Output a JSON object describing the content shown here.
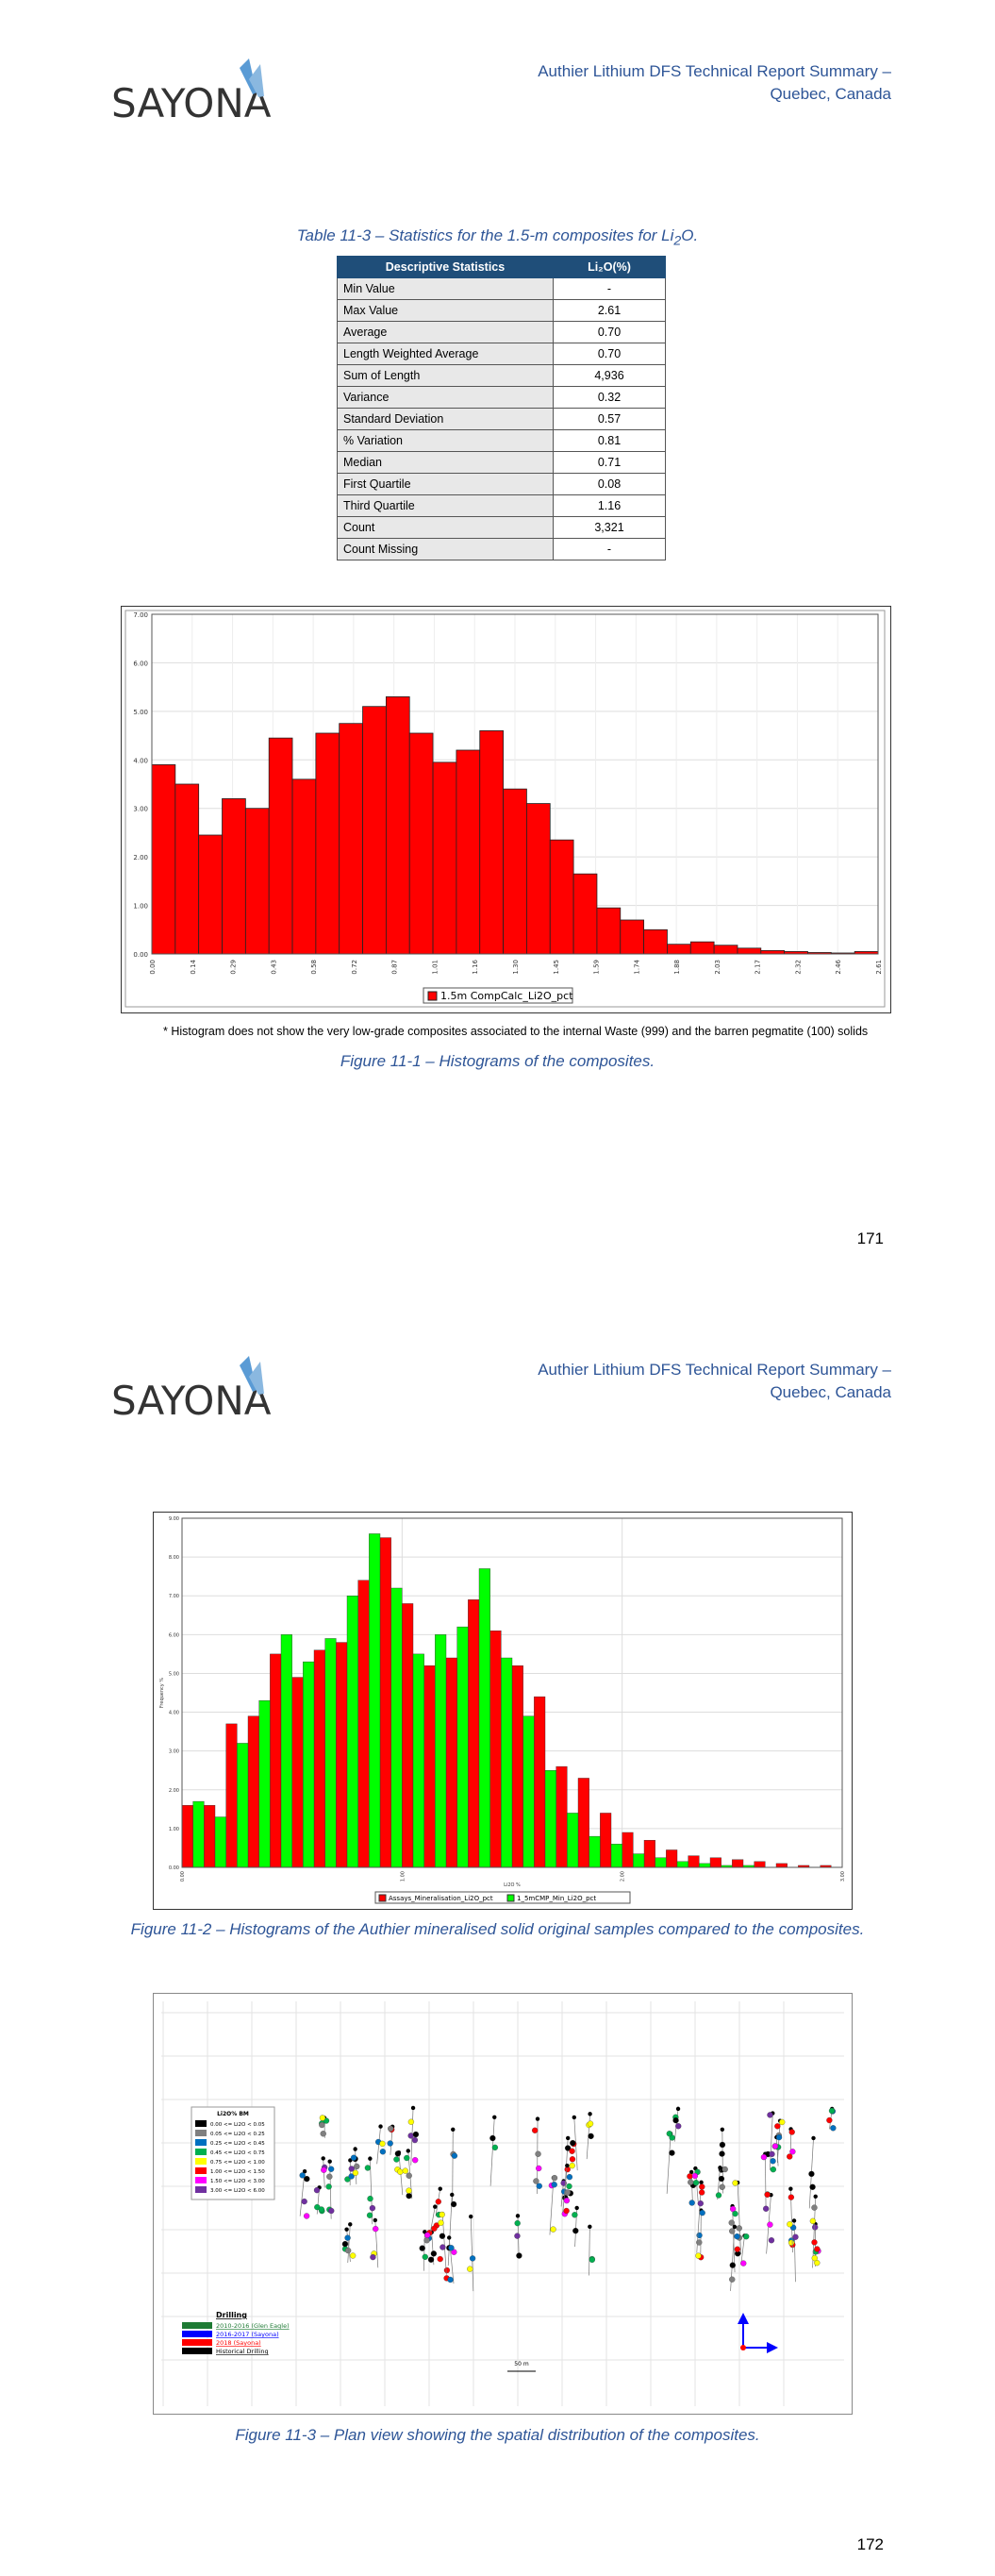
{
  "header": {
    "logo_text": "SAYONA",
    "title_line1": "Authier Lithium DFS Technical Report Summary –",
    "title_line2": "Quebec, Canada"
  },
  "page1": {
    "table_caption_prefix": "Table 11-3 – Statistics for the 1.5-m composites for Li",
    "table_caption_sub": "2",
    "table_caption_suffix": "O.",
    "table": {
      "col1": "Descriptive Statistics",
      "col2": "Li₂O(%)",
      "rows": [
        {
          "label": "Min Value",
          "value": "-"
        },
        {
          "label": "Max Value",
          "value": "2.61"
        },
        {
          "label": "Average",
          "value": "0.70"
        },
        {
          "label": "Length Weighted Average",
          "value": "0.70"
        },
        {
          "label": "Sum of Length",
          "value": "4,936"
        },
        {
          "label": "Variance",
          "value": "0.32"
        },
        {
          "label": "Standard Deviation",
          "value": "0.57"
        },
        {
          "label": "% Variation",
          "value": "0.81"
        },
        {
          "label": "Median",
          "value": "0.71"
        },
        {
          "label": "First Quartile",
          "value": "0.08"
        },
        {
          "label": "Third Quartile",
          "value": "1.16"
        },
        {
          "label": "Count",
          "value": "3,321"
        },
        {
          "label": "Count Missing",
          "value": "-"
        }
      ]
    },
    "footnote": "* Histogram does not show the very low-grade composites associated to the internal Waste (999) and the barren pegmatite (100) solids",
    "figure_caption": "Figure 11-1 – Histograms of the composites.",
    "page_number": "171"
  },
  "page2": {
    "figure2_caption": "Figure 11-2 – Histograms of the Authier mineralised solid original samples compared to the composites.",
    "figure3_caption": "Figure 11-3 – Plan view showing the spatial distribution of the composites.",
    "page_number": "172",
    "map": {
      "legend_title": "Li2O% BM",
      "legend_items": [
        "0.00 <= Li2O < 0.05",
        "0.05 <= Li2O < 0.25",
        "0.25 <= Li2O < 0.45",
        "0.45 <= Li2O < 0.75",
        "0.75 <= Li2O < 1.00",
        "1.00 <= Li2O < 1.50",
        "1.50 <= Li2O < 3.00",
        "3.00 <= Li2O < 6.00"
      ],
      "legend_colors": [
        "#000000",
        "#808080",
        "#0070c0",
        "#00b050",
        "#ffff00",
        "#ff0000",
        "#ff00ff",
        "#7030a0"
      ],
      "drilling_title": "Drilling",
      "drilling_items": [
        "2010-2016 (Glen Eagle)",
        "2016-2017 (Sayona)",
        "2018 (Sayona)",
        "Historical Drilling"
      ],
      "drilling_colors": [
        "#1e7b34",
        "#0000ff",
        "#ff0000",
        "#000000"
      ],
      "scale_label": "50 m"
    }
  },
  "chart_data": [
    {
      "type": "bar",
      "title": "",
      "legend": [
        "1.5m CompCalc_Li2O_pct"
      ],
      "series": [
        {
          "name": "1.5m CompCalc_Li2O_pct",
          "values": [
            3.9,
            3.5,
            2.45,
            3.2,
            3.0,
            4.45,
            3.6,
            4.55,
            4.75,
            5.1,
            5.3,
            4.55,
            3.95,
            4.2,
            4.6,
            3.4,
            3.1,
            2.35,
            1.65,
            0.95,
            0.7,
            0.5,
            0.2,
            0.25,
            0.18,
            0.12,
            0.07,
            0.05,
            0.03,
            0.02,
            0.05
          ]
        }
      ],
      "x_ticks": [
        "0.00",
        "0.14",
        "0.29",
        "0.43",
        "0.58",
        "0.72",
        "0.87",
        "1.01",
        "1.16",
        "1.30",
        "1.45",
        "1.59",
        "1.74",
        "1.88",
        "2.03",
        "2.17",
        "2.32",
        "2.46",
        "2.61"
      ],
      "y_ticks": [
        "0.00",
        "1.00",
        "2.00",
        "3.00",
        "4.00",
        "5.00",
        "6.00",
        "7.00"
      ],
      "ylim": [
        0,
        7
      ],
      "xlim": [
        0,
        2.61
      ],
      "grid": true,
      "color": "#ff0000",
      "legend_position": "bottom"
    },
    {
      "type": "bar",
      "title": "",
      "xlabel": "Li2O %",
      "ylabel": "Frequency %",
      "legend": [
        "Assays_Mineralisation_Li2O_pct",
        "1_5mCMP_Min_Li2O_pct"
      ],
      "series": [
        {
          "name": "Assays_Mineralisation_Li2O_pct",
          "color": "#ff0000",
          "values": [
            1.6,
            1.6,
            3.7,
            3.9,
            5.5,
            4.9,
            5.6,
            5.8,
            7.4,
            8.5,
            6.8,
            5.2,
            5.4,
            6.9,
            6.1,
            5.2,
            4.4,
            2.6,
            2.3,
            1.4,
            0.9,
            0.7,
            0.45,
            0.3,
            0.25,
            0.2,
            0.15,
            0.1,
            0.05,
            0.05
          ]
        },
        {
          "name": "1_5mCMP_Min_Li2O_pct",
          "color": "#00ff00",
          "values": [
            1.7,
            1.3,
            3.2,
            4.3,
            6.0,
            5.3,
            5.9,
            7.0,
            8.6,
            7.2,
            5.5,
            6.0,
            6.2,
            7.7,
            5.4,
            3.9,
            2.5,
            1.4,
            0.8,
            0.6,
            0.35,
            0.25,
            0.15,
            0.1,
            0.05,
            0.05,
            0.0,
            0.0,
            0.0,
            0.0
          ]
        }
      ],
      "x_ticks": [
        "0.00",
        "1.00",
        "2.00",
        "3.00"
      ],
      "y_ticks": [
        "0.00",
        "1.00",
        "2.00",
        "3.00",
        "4.00",
        "5.00",
        "6.00",
        "7.00",
        "8.00",
        "9.00"
      ],
      "ylim": [
        0,
        9
      ],
      "xlim": [
        0,
        3
      ],
      "grid": true,
      "legend_position": "bottom"
    }
  ]
}
